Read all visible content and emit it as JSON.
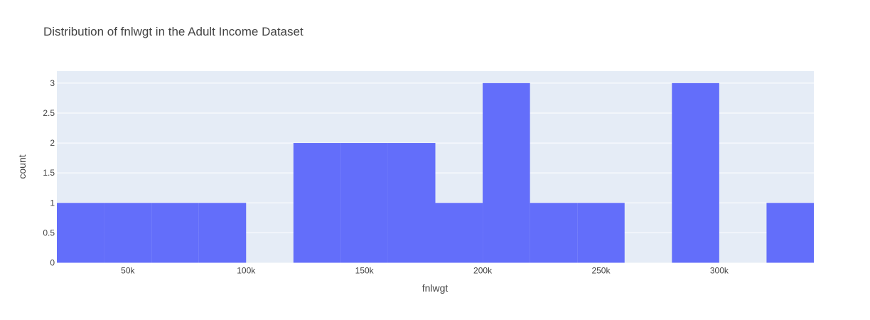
{
  "chart_data": {
    "type": "bar",
    "title": "Distribution of fnlwgt in the Adult Income Dataset",
    "xlabel": "fnlwgt",
    "ylabel": "count",
    "xlim": [
      20000,
      340000
    ],
    "ylim": [
      0,
      3.2
    ],
    "bin_width": 20000,
    "bins": [
      {
        "start": 20000,
        "end": 40000,
        "count": 1
      },
      {
        "start": 40000,
        "end": 60000,
        "count": 1
      },
      {
        "start": 60000,
        "end": 80000,
        "count": 1
      },
      {
        "start": 80000,
        "end": 100000,
        "count": 1
      },
      {
        "start": 100000,
        "end": 120000,
        "count": 0
      },
      {
        "start": 120000,
        "end": 140000,
        "count": 2
      },
      {
        "start": 140000,
        "end": 160000,
        "count": 2
      },
      {
        "start": 160000,
        "end": 180000,
        "count": 2
      },
      {
        "start": 180000,
        "end": 200000,
        "count": 1
      },
      {
        "start": 200000,
        "end": 220000,
        "count": 3
      },
      {
        "start": 220000,
        "end": 240000,
        "count": 1
      },
      {
        "start": 240000,
        "end": 260000,
        "count": 1
      },
      {
        "start": 260000,
        "end": 280000,
        "count": 0
      },
      {
        "start": 280000,
        "end": 300000,
        "count": 3
      },
      {
        "start": 300000,
        "end": 320000,
        "count": 0
      },
      {
        "start": 320000,
        "end": 340000,
        "count": 1
      }
    ],
    "x_ticks": [
      {
        "value": 50000,
        "label": "50k"
      },
      {
        "value": 100000,
        "label": "100k"
      },
      {
        "value": 150000,
        "label": "150k"
      },
      {
        "value": 200000,
        "label": "200k"
      },
      {
        "value": 250000,
        "label": "250k"
      },
      {
        "value": 300000,
        "label": "300k"
      }
    ],
    "y_ticks": [
      {
        "value": 0,
        "label": "0"
      },
      {
        "value": 0.5,
        "label": "0.5"
      },
      {
        "value": 1,
        "label": "1"
      },
      {
        "value": 1.5,
        "label": "1.5"
      },
      {
        "value": 2,
        "label": "2"
      },
      {
        "value": 2.5,
        "label": "2.5"
      },
      {
        "value": 3,
        "label": "3"
      }
    ],
    "grid": true,
    "colors": {
      "bar": "#636efa",
      "plot_background": "#e5ecf6",
      "grid": "#ffffff"
    }
  }
}
